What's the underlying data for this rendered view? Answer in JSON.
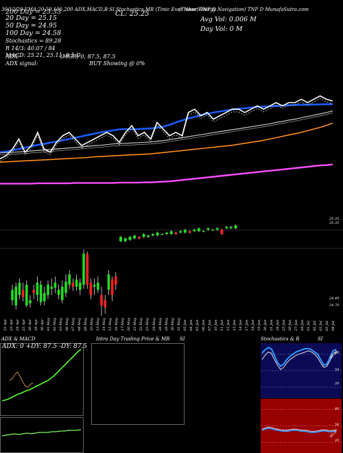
{
  "header": {
    "line1": "30/12/20 EMA:20,50,100,200 ADX,MACD,B SI,Stochastics,MR (Tintc Ever Nose) TNP D",
    "line1b": "(Tinker Energy Navigation) TNP D MunafaSutra.com",
    "cl": "CL: 25.25",
    "avg_vol": "Avg Vol: 0.006 M",
    "day_vol": "Day Vol: 0   M",
    "ema20": "20  Day = 25.15",
    "ema50": "50  Day = 24.95",
    "ema100": "100  Day = 24.58",
    "ema200": "200  Day = 23.33",
    "stoch": "Stochastics = 89.28",
    "r": "R 14/3: 40.07 / 84",
    "macd": "MACD: 25.21, 25.11, 0.1 D",
    "adx": "ADX:",
    "adx_signal": "ADX  signal:",
    "mgr": "(MGR) 0, 87.5,  87.5",
    "buy": "BUY Showing @ 0%"
  },
  "price_labels": {
    "p1": "25.25",
    "p2": "25.33",
    "p3": "24.49",
    "p4": "24.70"
  },
  "x_dates": [
    "21 Apr",
    "23 Apr",
    "24 Apr",
    "25 Apr",
    "26 Apr",
    "29 Apr",
    "30 Apr",
    "01 May",
    "02 May",
    "03 May",
    "06 May",
    "07 May",
    "08 May",
    "09 May",
    "10 May",
    "13 May",
    "14 May",
    "15 May",
    "16 May",
    "17 May",
    "20 May",
    "21 May",
    "22 May",
    "23 May",
    "24 May",
    "28 May",
    "29 May",
    "30 May",
    "31 May",
    "03 Jun",
    "04 Jun",
    "05 Jun",
    "06 Jun",
    "07 Jun",
    "10 Jun",
    "11 Jun",
    "12 Jun",
    "13 Jun",
    "14 Jun",
    "17 Jun",
    "18 Jun",
    "19 Jun",
    "20 Jun",
    "21 Jun",
    "24 Jun",
    "25 Jun",
    "26 Jun",
    "27 Jun",
    "28 Jun",
    "01 Jul",
    "02 Jul",
    "03 Jul",
    "05 Jul",
    "08 Jul"
  ],
  "panels": {
    "adx_title": "ADX  & MACD",
    "adx_readout": "ADX: 0   +DY: 87.5  -DY: 87.5",
    "intraday_title": "Intra  Day Trading Price  & MR",
    "si_title": "SI",
    "stoch_title": "Stochastics & R",
    "stoch_si": "SI",
    "stoch_levels": [
      "80",
      "50",
      "20"
    ],
    "rsi_levels": [
      "80",
      "50",
      "20"
    ],
    "stoch_value": "89.28",
    "rsi_value": "40.07"
  },
  "colors": {
    "ema20": "#1a5cff",
    "ema50": "#c8c8c8",
    "ema100": "#ff8c1a",
    "ema200": "#ff4dff",
    "price": "#ffffff",
    "up": "#22dd22",
    "down": "#ff2222",
    "stoch_bg": "#0a0a55",
    "rsi_bg": "#990000",
    "adx_line": "#55ff33"
  },
  "chart_data": {
    "type": "line",
    "series": [
      {
        "name": "20 Day",
        "values": [
          23.7,
          23.72,
          23.76,
          23.8,
          23.84,
          23.88,
          23.92,
          23.95,
          23.99,
          24.02,
          24.06,
          24.1,
          24.14,
          24.18,
          24.22,
          24.26,
          24.3,
          24.33,
          24.36,
          24.39,
          24.4,
          24.39,
          24.4,
          24.41,
          24.42,
          24.44,
          24.47,
          24.53,
          24.6,
          24.66,
          24.72,
          24.77,
          24.82,
          24.86,
          24.9,
          24.93,
          24.96,
          24.99,
          25.01,
          25.03,
          25.05,
          25.07,
          25.08,
          25.09,
          25.1,
          25.11,
          25.12,
          25.13,
          25.13,
          25.14,
          25.14,
          25.15,
          25.15,
          25.15
        ]
      },
      {
        "name": "50 Day",
        "values": [
          23.68,
          23.69,
          23.7,
          23.71,
          23.72,
          23.74,
          23.75,
          23.77,
          23.78,
          23.8,
          23.81,
          23.83,
          23.84,
          23.86,
          23.88,
          23.9,
          23.91,
          23.93,
          23.95,
          23.96,
          23.97,
          23.98,
          23.99,
          24.0,
          24.01,
          24.03,
          24.05,
          24.08,
          24.11,
          24.14,
          24.17,
          24.2,
          24.23,
          24.26,
          24.29,
          24.32,
          24.35,
          24.38,
          24.41,
          24.44,
          24.47,
          24.5,
          24.53,
          24.56,
          24.6,
          24.63,
          24.67,
          24.7,
          24.74,
          24.78,
          24.82,
          24.86,
          24.9,
          24.95
        ]
      },
      {
        "name": "100 Day",
        "values": [
          23.4,
          23.41,
          23.42,
          23.43,
          23.44,
          23.45,
          23.46,
          23.47,
          23.48,
          23.49,
          23.5,
          23.51,
          23.52,
          23.53,
          23.54,
          23.56,
          23.57,
          23.58,
          23.59,
          23.6,
          23.61,
          23.62,
          23.63,
          23.64,
          23.65,
          23.67,
          23.69,
          23.71,
          23.73,
          23.75,
          23.77,
          23.79,
          23.81,
          23.83,
          23.85,
          23.87,
          23.89,
          23.91,
          23.94,
          23.97,
          24.0,
          24.03,
          24.06,
          24.1,
          24.14,
          24.18,
          24.22,
          24.26,
          24.3,
          24.35,
          24.4,
          24.45,
          24.51,
          24.58
        ]
      },
      {
        "name": "200 Day",
        "values": [
          22.75,
          22.75,
          22.75,
          22.75,
          22.75,
          22.75,
          22.76,
          22.76,
          22.76,
          22.76,
          22.76,
          22.76,
          22.77,
          22.77,
          22.77,
          22.77,
          22.77,
          22.77,
          22.77,
          22.78,
          22.78,
          22.78,
          22.78,
          22.79,
          22.79,
          22.8,
          22.81,
          22.82,
          22.84,
          22.86,
          22.88,
          22.9,
          22.92,
          22.94,
          22.96,
          22.98,
          23.0,
          23.02,
          23.04,
          23.06,
          23.08,
          23.1,
          23.12,
          23.14,
          23.16,
          23.18,
          23.2,
          23.22,
          23.24,
          23.26,
          23.28,
          23.3,
          23.31,
          23.33
        ]
      },
      {
        "name": "Price",
        "values": [
          23.5,
          23.6,
          23.8,
          24.1,
          23.7,
          23.9,
          24.3,
          23.8,
          23.7,
          24.0,
          24.2,
          24.3,
          24.1,
          23.9,
          24.0,
          24.1,
          24.2,
          24.3,
          24.2,
          24.0,
          24.3,
          24.5,
          24.2,
          24.3,
          24.1,
          24.6,
          24.4,
          24.2,
          24.3,
          24.2,
          24.9,
          25.0,
          24.8,
          24.9,
          24.7,
          24.8,
          24.9,
          25.0,
          25.0,
          24.9,
          25.0,
          25.1,
          25.0,
          25.1,
          25.2,
          25.1,
          25.2,
          25.2,
          25.3,
          25.2,
          25.3,
          25.4,
          25.3,
          25.25
        ]
      }
    ],
    "candles_open": [
      24.45,
      24.4,
      24.5,
      24.55,
      24.4,
      24.42,
      24.55,
      24.5,
      24.43,
      24.44,
      24.5,
      24.56,
      24.57,
      24.5,
      24.45,
      24.52,
      24.6,
      24.62,
      24.58,
      24.55,
      24.6,
      24.9,
      24.62,
      24.58,
      24.55,
      24.5,
      24.45,
      24.55,
      24.65,
      24.68
    ],
    "candles_close": [
      24.55,
      24.58,
      24.62,
      24.48,
      24.6,
      24.45,
      24.52,
      24.62,
      24.6,
      24.52,
      24.6,
      24.58,
      24.62,
      24.55,
      24.58,
      24.63,
      24.7,
      24.58,
      24.65,
      24.62,
      24.9,
      24.6,
      24.5,
      24.6,
      24.62,
      24.4,
      24.38,
      24.7,
      24.5,
      24.6
    ],
    "candles_high": [
      24.6,
      24.62,
      24.66,
      24.62,
      24.64,
      24.5,
      24.6,
      24.68,
      24.64,
      24.58,
      24.64,
      24.66,
      24.68,
      24.6,
      24.64,
      24.7,
      24.74,
      24.66,
      24.7,
      24.66,
      24.94,
      24.92,
      24.66,
      24.66,
      24.68,
      24.58,
      24.5,
      24.74,
      24.68,
      24.72
    ],
    "candles_low": [
      24.4,
      24.36,
      24.46,
      24.44,
      24.38,
      24.38,
      24.46,
      24.44,
      24.4,
      24.4,
      24.46,
      24.5,
      24.52,
      24.46,
      24.42,
      24.48,
      24.56,
      24.54,
      24.54,
      24.5,
      24.56,
      24.56,
      24.46,
      24.5,
      24.52,
      24.3,
      24.32,
      24.5,
      24.44,
      24.55
    ],
    "candles2_open": [
      25.25,
      25.25,
      25.26,
      25.27,
      25.28,
      25.28,
      25.28,
      25.29,
      25.29,
      25.3,
      25.3,
      25.3,
      25.31,
      25.31,
      25.31,
      25.32,
      25.32,
      25.32,
      25.32,
      25.33,
      25.33,
      25.33,
      25.33,
      25.34,
      25.34,
      25.34
    ],
    "candles2_close": [
      25.28,
      25.27,
      25.28,
      25.29,
      25.27,
      25.3,
      25.29,
      25.3,
      25.31,
      25.3,
      25.31,
      25.32,
      25.3,
      25.32,
      25.33,
      25.31,
      25.33,
      25.34,
      25.32,
      25.34,
      25.33,
      25.34,
      25.3,
      25.35,
      25.35,
      25.36
    ],
    "adx_series": [
      {
        "name": "ADX",
        "values": [
          20,
          21,
          22,
          24,
          26,
          28,
          30,
          31,
          33,
          35,
          36,
          38,
          40,
          42,
          44,
          46,
          48,
          50,
          53,
          56,
          60,
          64,
          68,
          72,
          76,
          80,
          84,
          88,
          92,
          95
        ]
      }
    ],
    "stoch_series": [
      {
        "name": "Stochastics",
        "values": [
          82,
          88,
          92,
          90,
          78,
          65,
          58,
          62,
          70,
          76,
          80,
          84,
          86,
          88,
          90,
          90,
          88,
          84,
          80,
          70,
          60,
          62,
          74,
          86,
          89
        ]
      },
      {
        "name": "R",
        "values": [
          70,
          78,
          84,
          82,
          70,
          60,
          52,
          56,
          64,
          70,
          74,
          78,
          80,
          82,
          84,
          86,
          84,
          80,
          74,
          64,
          56,
          58,
          68,
          80,
          84
        ]
      }
    ],
    "rsi_series": [
      {
        "name": "SI",
        "values": [
          42,
          44,
          46,
          45,
          43,
          42,
          41,
          40,
          40,
          41,
          42,
          42,
          41,
          40,
          40,
          39,
          38,
          38,
          39,
          40,
          41,
          40,
          39,
          40,
          40
        ]
      }
    ]
  }
}
